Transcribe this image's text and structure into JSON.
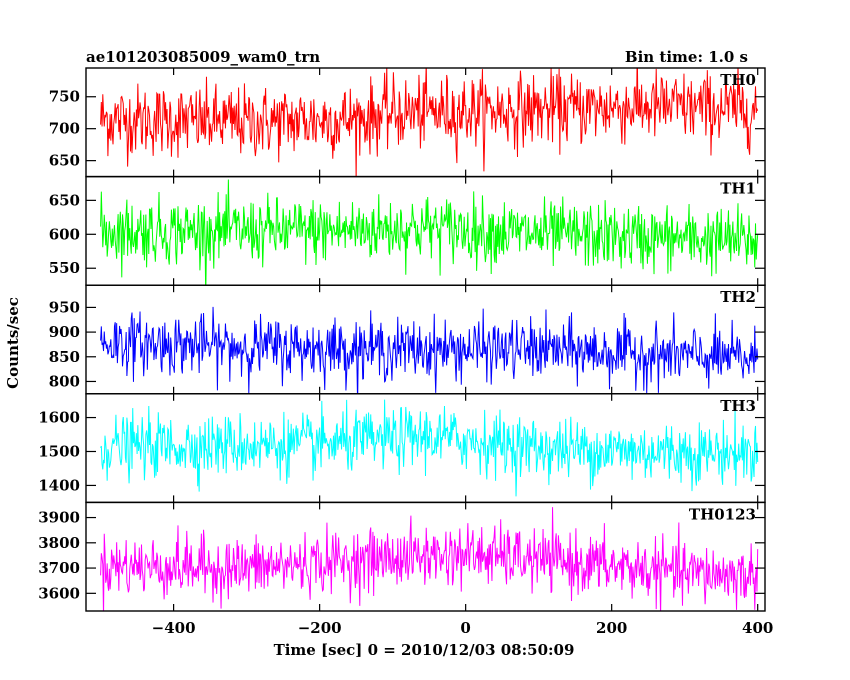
{
  "chart_data": {
    "type": "line",
    "title": "ae101203085009_wam0_trn",
    "subtitle": "Bin time: 1.0 s",
    "xlabel": "Time [sec] 0 = 2010/12/03 08:50:09",
    "ylabel": "Counts/sec",
    "xlim": [
      -520,
      410
    ],
    "x_ticks": [
      -400,
      -200,
      0,
      200,
      400
    ],
    "x_tick_labels": [
      "−400",
      "−200",
      "0",
      "200",
      "400"
    ],
    "x_data_range": [
      -500,
      400
    ],
    "bin_time": 1.0,
    "grid": false,
    "panels": [
      {
        "name": "TH0",
        "color": "#ff0000",
        "ylim": [
          625,
          795
        ],
        "yticks": [
          650,
          700,
          750
        ],
        "trend": [
          [
            -500,
            715
          ],
          [
            -300,
            710
          ],
          [
            -150,
            715
          ],
          [
            -100,
            725
          ],
          [
            100,
            730
          ],
          [
            250,
            735
          ],
          [
            400,
            730
          ]
        ],
        "noise_sd": 28
      },
      {
        "name": "TH1",
        "color": "#00ff00",
        "ylim": [
          525,
          685
        ],
        "yticks": [
          550,
          600,
          650
        ],
        "trend": [
          [
            -500,
            605
          ],
          [
            -200,
            605
          ],
          [
            -50,
            610
          ],
          [
            100,
            600
          ],
          [
            250,
            595
          ],
          [
            400,
            590
          ]
        ],
        "noise_sd": 24
      },
      {
        "name": "TH2",
        "color": "#0000ff",
        "ylim": [
          775,
          995
        ],
        "yticks": [
          800,
          850,
          900,
          950
        ],
        "trend": [
          [
            -500,
            880
          ],
          [
            -300,
            870
          ],
          [
            -100,
            865
          ],
          [
            100,
            865
          ],
          [
            250,
            855
          ],
          [
            400,
            845
          ]
        ],
        "noise_sd": 30
      },
      {
        "name": "TH3",
        "color": "#00ffff",
        "ylim": [
          1350,
          1670
        ],
        "yticks": [
          1400,
          1500,
          1600
        ],
        "trend": [
          [
            -500,
            1515
          ],
          [
            -200,
            1520
          ],
          [
            -50,
            1545
          ],
          [
            100,
            1510
          ],
          [
            250,
            1500
          ],
          [
            400,
            1495
          ]
        ],
        "noise_sd": 45
      },
      {
        "name": "TH0123",
        "color": "#ff00ff",
        "ylim": [
          3530,
          3960
        ],
        "yticks": [
          3600,
          3700,
          3800,
          3900
        ],
        "trend": [
          [
            -500,
            3710
          ],
          [
            -300,
            3700
          ],
          [
            -100,
            3740
          ],
          [
            0,
            3755
          ],
          [
            150,
            3720
          ],
          [
            300,
            3680
          ],
          [
            400,
            3670
          ]
        ],
        "noise_sd": 60
      }
    ]
  }
}
